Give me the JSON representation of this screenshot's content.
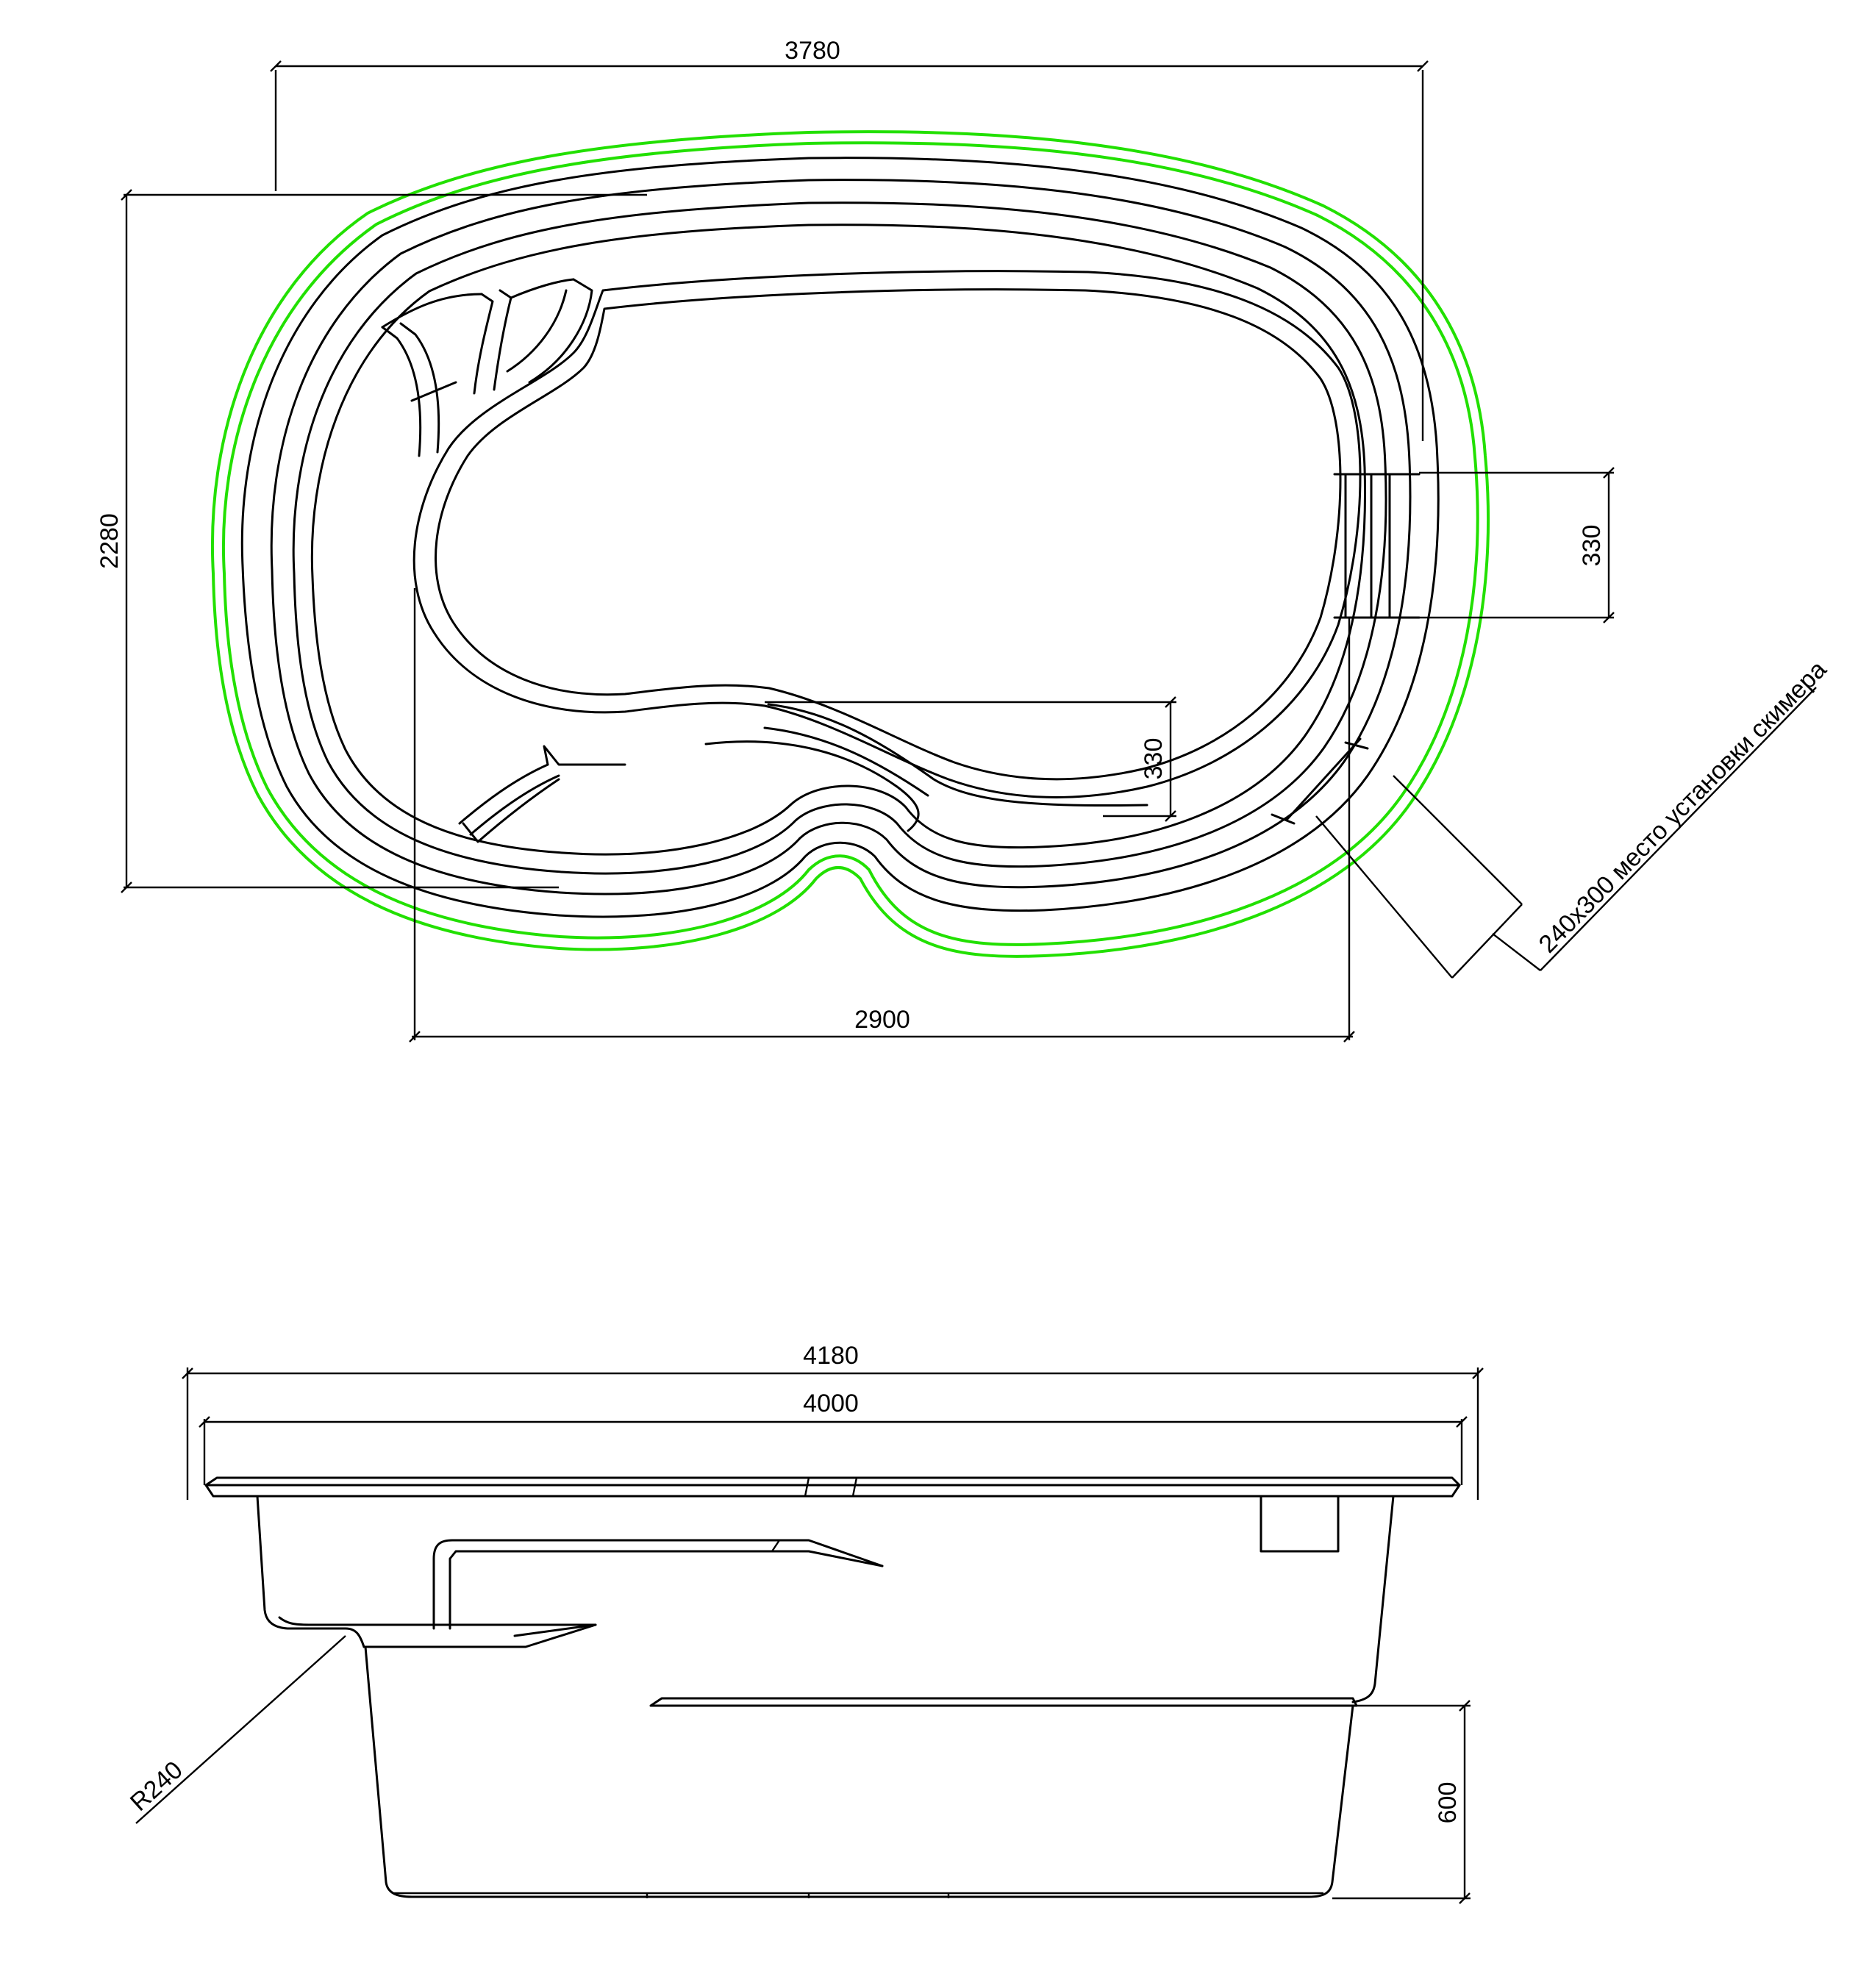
{
  "plan": {
    "width_label": "3780",
    "height_label": "2280",
    "length_label": "2900",
    "skimmer_width_label": "330",
    "bench_label": "330",
    "skimmer_note": "240х300 место установки скимера"
  },
  "section": {
    "outer_width_label": "4180",
    "inner_width_label": "4000",
    "depth_step_label": "600",
    "radius_label": "R240"
  },
  "colors": {
    "line": "#000000",
    "outline": "#22e000"
  }
}
